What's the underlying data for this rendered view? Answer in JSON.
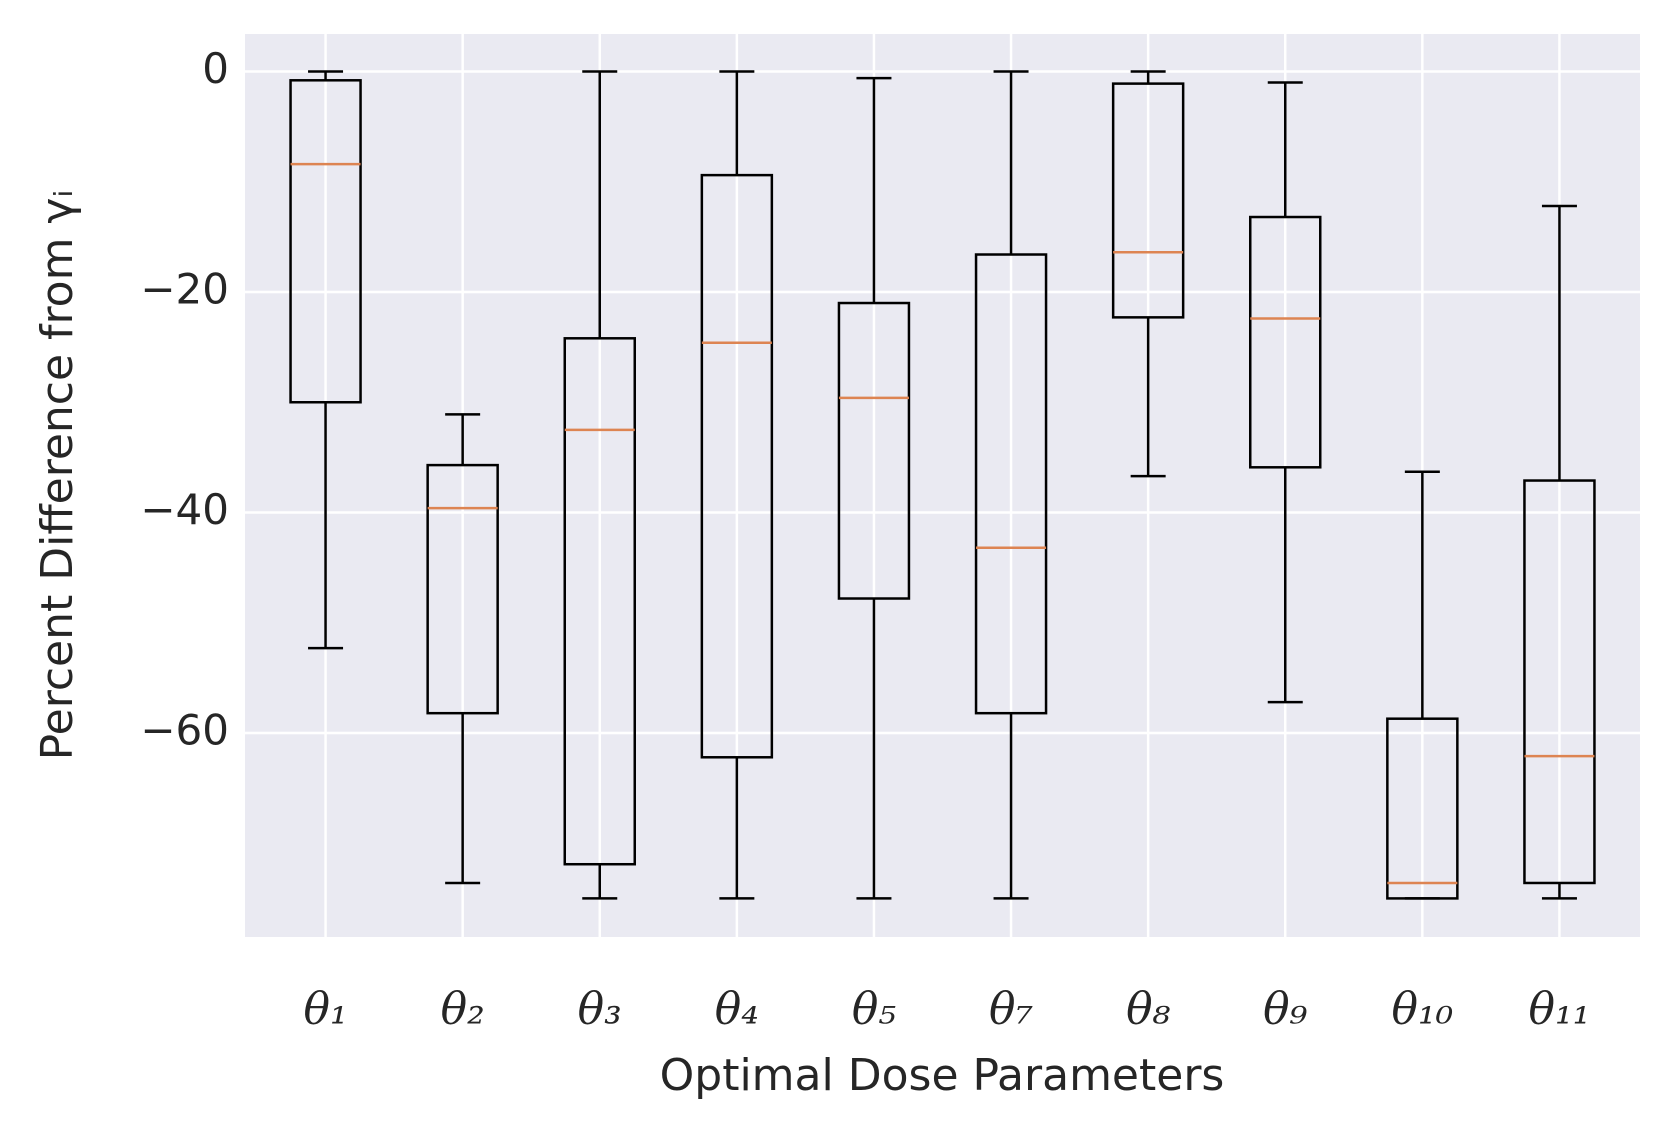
{
  "chart_data": {
    "type": "box",
    "xlabel": "Optimal Dose Parameters",
    "ylabel": "Percent Difference from γᵢ",
    "categories": [
      "θ₁",
      "θ₂",
      "θ₃",
      "θ₄",
      "θ₅",
      "θ₇",
      "θ₈",
      "θ₉",
      "θ₁₀",
      "θ₁₁"
    ],
    "boxes": [
      {
        "whislo": -52.3,
        "q1": -30.0,
        "med": -8.4,
        "q3": -0.8,
        "whishi": 0
      },
      {
        "whislo": -73.6,
        "q1": -58.2,
        "med": -39.6,
        "q3": -35.7,
        "whishi": -31.1
      },
      {
        "whislo": -75.0,
        "q1": -71.9,
        "med": -32.5,
        "q3": -24.2,
        "whishi": 0
      },
      {
        "whislo": -75.0,
        "q1": -62.2,
        "med": -24.6,
        "q3": -9.4,
        "whishi": 0
      },
      {
        "whislo": -75.0,
        "q1": -47.8,
        "med": -29.6,
        "q3": -21.0,
        "whishi": -0.6
      },
      {
        "whislo": -75.0,
        "q1": -58.2,
        "med": -43.2,
        "q3": -16.6,
        "whishi": 0
      },
      {
        "whislo": -36.7,
        "q1": -22.3,
        "med": -16.4,
        "q3": -1.1,
        "whishi": 0
      },
      {
        "whislo": -57.2,
        "q1": -35.9,
        "med": -22.4,
        "q3": -13.2,
        "whishi": -1.0
      },
      {
        "whislo": -75.0,
        "q1": -75.0,
        "med": -73.6,
        "q3": -58.7,
        "whishi": -36.3
      },
      {
        "whislo": -75.0,
        "q1": -73.6,
        "med": -62.1,
        "q3": -37.1,
        "whishi": -12.2
      }
    ],
    "color": "#000000",
    "median_color": "#dd8452",
    "background": "#eaeaf2",
    "ylim": [
      -78.5,
      3.4
    ],
    "yticks": [
      0,
      {
        "value": -20,
        "label": "−20"
      },
      {
        "value": -40,
        "label": "−40"
      },
      {
        "value": -60,
        "label": "−60"
      }
    ],
    "grid": true
  }
}
